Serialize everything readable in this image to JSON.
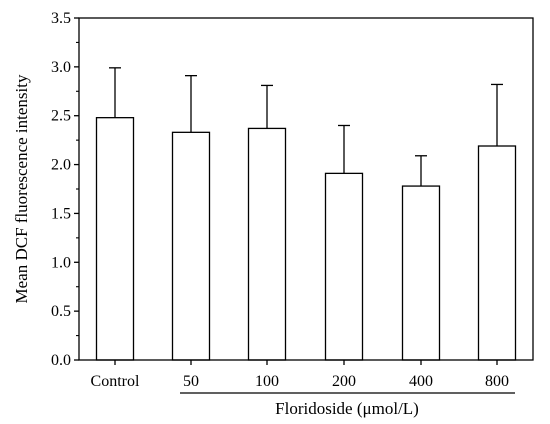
{
  "chart_data": {
    "type": "bar",
    "categories": [
      "Control",
      "50",
      "100",
      "200",
      "400",
      "800"
    ],
    "values": [
      2.48,
      2.33,
      2.37,
      1.91,
      1.78,
      2.19
    ],
    "error_upper": [
      2.99,
      2.91,
      2.81,
      2.4,
      2.09,
      2.82
    ],
    "ylabel": "Mean DCF fluorescence intensity",
    "xlabel": "Floridoside (μmol/L)",
    "ylim": [
      0,
      3.5
    ],
    "yticks": [
      "0.0",
      "0.5",
      "1.0",
      "1.5",
      "2.0",
      "2.5",
      "3.0",
      "3.5"
    ],
    "grid": false,
    "bar_fill": "#ffffff",
    "bar_stroke": "#000000"
  }
}
